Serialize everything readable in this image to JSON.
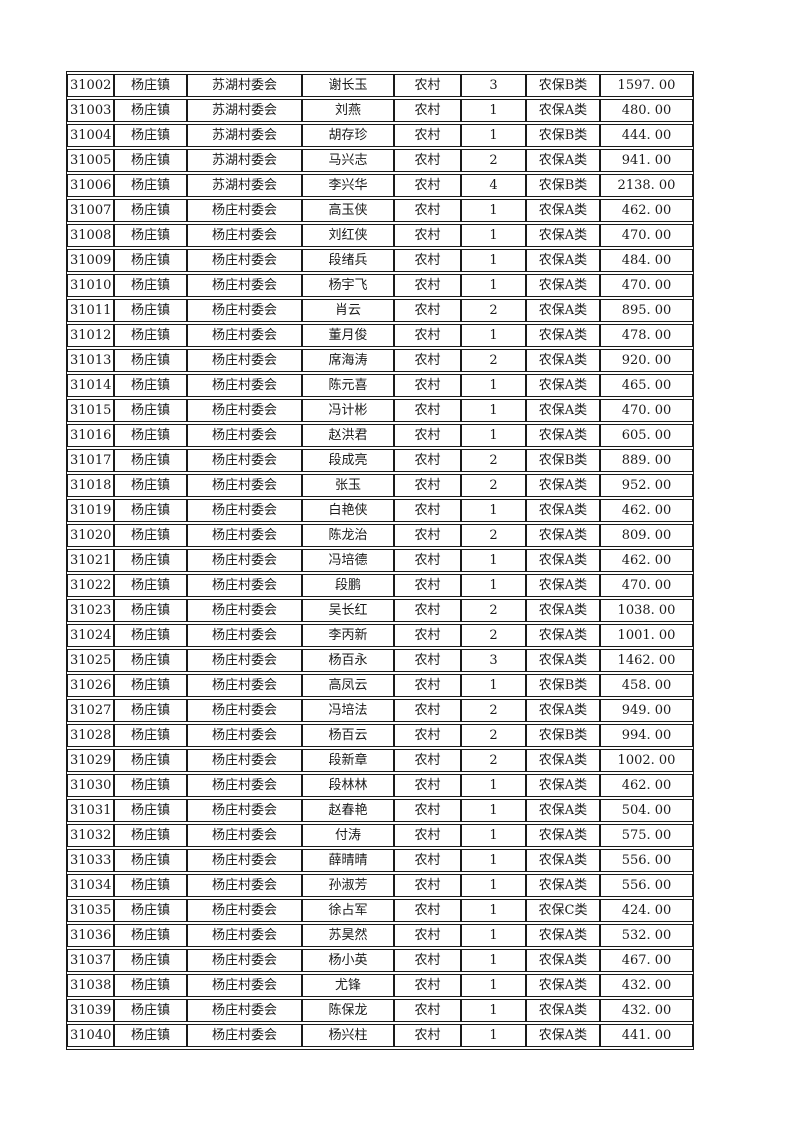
{
  "colors": {
    "page_background": "#ffffff",
    "grid_line": "#1a1a1a",
    "text": "#1a1a1a"
  },
  "table": {
    "cell_names": [
      "record-id",
      "town",
      "village-committee",
      "person-name",
      "residence-type",
      "person-count",
      "insurance-category",
      "amount"
    ],
    "rows": [
      [
        "31002",
        "杨庄镇",
        "苏湖村委会",
        "谢长玉",
        "农村",
        "3",
        "农保B类",
        "1597. 00"
      ],
      [
        "31003",
        "杨庄镇",
        "苏湖村委会",
        "刘燕",
        "农村",
        "1",
        "农保A类",
        "480. 00"
      ],
      [
        "31004",
        "杨庄镇",
        "苏湖村委会",
        "胡存珍",
        "农村",
        "1",
        "农保B类",
        "444. 00"
      ],
      [
        "31005",
        "杨庄镇",
        "苏湖村委会",
        "马兴志",
        "农村",
        "2",
        "农保A类",
        "941. 00"
      ],
      [
        "31006",
        "杨庄镇",
        "苏湖村委会",
        "李兴华",
        "农村",
        "4",
        "农保B类",
        "2138. 00"
      ],
      [
        "31007",
        "杨庄镇",
        "杨庄村委会",
        "高玉侠",
        "农村",
        "1",
        "农保A类",
        "462. 00"
      ],
      [
        "31008",
        "杨庄镇",
        "杨庄村委会",
        "刘红侠",
        "农村",
        "1",
        "农保A类",
        "470. 00"
      ],
      [
        "31009",
        "杨庄镇",
        "杨庄村委会",
        "段绪兵",
        "农村",
        "1",
        "农保A类",
        "484. 00"
      ],
      [
        "31010",
        "杨庄镇",
        "杨庄村委会",
        "杨宇飞",
        "农村",
        "1",
        "农保A类",
        "470. 00"
      ],
      [
        "31011",
        "杨庄镇",
        "杨庄村委会",
        "肖云",
        "农村",
        "2",
        "农保A类",
        "895. 00"
      ],
      [
        "31012",
        "杨庄镇",
        "杨庄村委会",
        "董月俊",
        "农村",
        "1",
        "农保A类",
        "478. 00"
      ],
      [
        "31013",
        "杨庄镇",
        "杨庄村委会",
        "席海涛",
        "农村",
        "2",
        "农保A类",
        "920. 00"
      ],
      [
        "31014",
        "杨庄镇",
        "杨庄村委会",
        "陈元喜",
        "农村",
        "1",
        "农保A类",
        "465. 00"
      ],
      [
        "31015",
        "杨庄镇",
        "杨庄村委会",
        "冯计彬",
        "农村",
        "1",
        "农保A类",
        "470. 00"
      ],
      [
        "31016",
        "杨庄镇",
        "杨庄村委会",
        "赵洪君",
        "农村",
        "1",
        "农保A类",
        "605. 00"
      ],
      [
        "31017",
        "杨庄镇",
        "杨庄村委会",
        "段成亮",
        "农村",
        "2",
        "农保B类",
        "889. 00"
      ],
      [
        "31018",
        "杨庄镇",
        "杨庄村委会",
        "张玉",
        "农村",
        "2",
        "农保A类",
        "952. 00"
      ],
      [
        "31019",
        "杨庄镇",
        "杨庄村委会",
        "白艳侠",
        "农村",
        "1",
        "农保A类",
        "462. 00"
      ],
      [
        "31020",
        "杨庄镇",
        "杨庄村委会",
        "陈龙治",
        "农村",
        "2",
        "农保A类",
        "809. 00"
      ],
      [
        "31021",
        "杨庄镇",
        "杨庄村委会",
        "冯培德",
        "农村",
        "1",
        "农保A类",
        "462. 00"
      ],
      [
        "31022",
        "杨庄镇",
        "杨庄村委会",
        "段鹏",
        "农村",
        "1",
        "农保A类",
        "470. 00"
      ],
      [
        "31023",
        "杨庄镇",
        "杨庄村委会",
        "吴长红",
        "农村",
        "2",
        "农保A类",
        "1038. 00"
      ],
      [
        "31024",
        "杨庄镇",
        "杨庄村委会",
        "李丙新",
        "农村",
        "2",
        "农保A类",
        "1001. 00"
      ],
      [
        "31025",
        "杨庄镇",
        "杨庄村委会",
        "杨百永",
        "农村",
        "3",
        "农保A类",
        "1462. 00"
      ],
      [
        "31026",
        "杨庄镇",
        "杨庄村委会",
        "高凤云",
        "农村",
        "1",
        "农保B类",
        "458. 00"
      ],
      [
        "31027",
        "杨庄镇",
        "杨庄村委会",
        "冯培法",
        "农村",
        "2",
        "农保A类",
        "949. 00"
      ],
      [
        "31028",
        "杨庄镇",
        "杨庄村委会",
        "杨百云",
        "农村",
        "2",
        "农保B类",
        "994. 00"
      ],
      [
        "31029",
        "杨庄镇",
        "杨庄村委会",
        "段新章",
        "农村",
        "2",
        "农保A类",
        "1002. 00"
      ],
      [
        "31030",
        "杨庄镇",
        "杨庄村委会",
        "段林林",
        "农村",
        "1",
        "农保A类",
        "462. 00"
      ],
      [
        "31031",
        "杨庄镇",
        "杨庄村委会",
        "赵春艳",
        "农村",
        "1",
        "农保A类",
        "504. 00"
      ],
      [
        "31032",
        "杨庄镇",
        "杨庄村委会",
        "付涛",
        "农村",
        "1",
        "农保A类",
        "575. 00"
      ],
      [
        "31033",
        "杨庄镇",
        "杨庄村委会",
        "薛晴晴",
        "农村",
        "1",
        "农保A类",
        "556. 00"
      ],
      [
        "31034",
        "杨庄镇",
        "杨庄村委会",
        "孙淑芳",
        "农村",
        "1",
        "农保A类",
        "556. 00"
      ],
      [
        "31035",
        "杨庄镇",
        "杨庄村委会",
        "徐占军",
        "农村",
        "1",
        "农保C类",
        "424. 00"
      ],
      [
        "31036",
        "杨庄镇",
        "杨庄村委会",
        "苏昊然",
        "农村",
        "1",
        "农保A类",
        "532. 00"
      ],
      [
        "31037",
        "杨庄镇",
        "杨庄村委会",
        "杨小英",
        "农村",
        "1",
        "农保A类",
        "467. 00"
      ],
      [
        "31038",
        "杨庄镇",
        "杨庄村委会",
        "尤锋",
        "农村",
        "1",
        "农保A类",
        "432. 00"
      ],
      [
        "31039",
        "杨庄镇",
        "杨庄村委会",
        "陈保龙",
        "农村",
        "1",
        "农保A类",
        "432. 00"
      ],
      [
        "31040",
        "杨庄镇",
        "杨庄村委会",
        "杨兴柱",
        "农村",
        "1",
        "农保A类",
        "441. 00"
      ]
    ]
  }
}
